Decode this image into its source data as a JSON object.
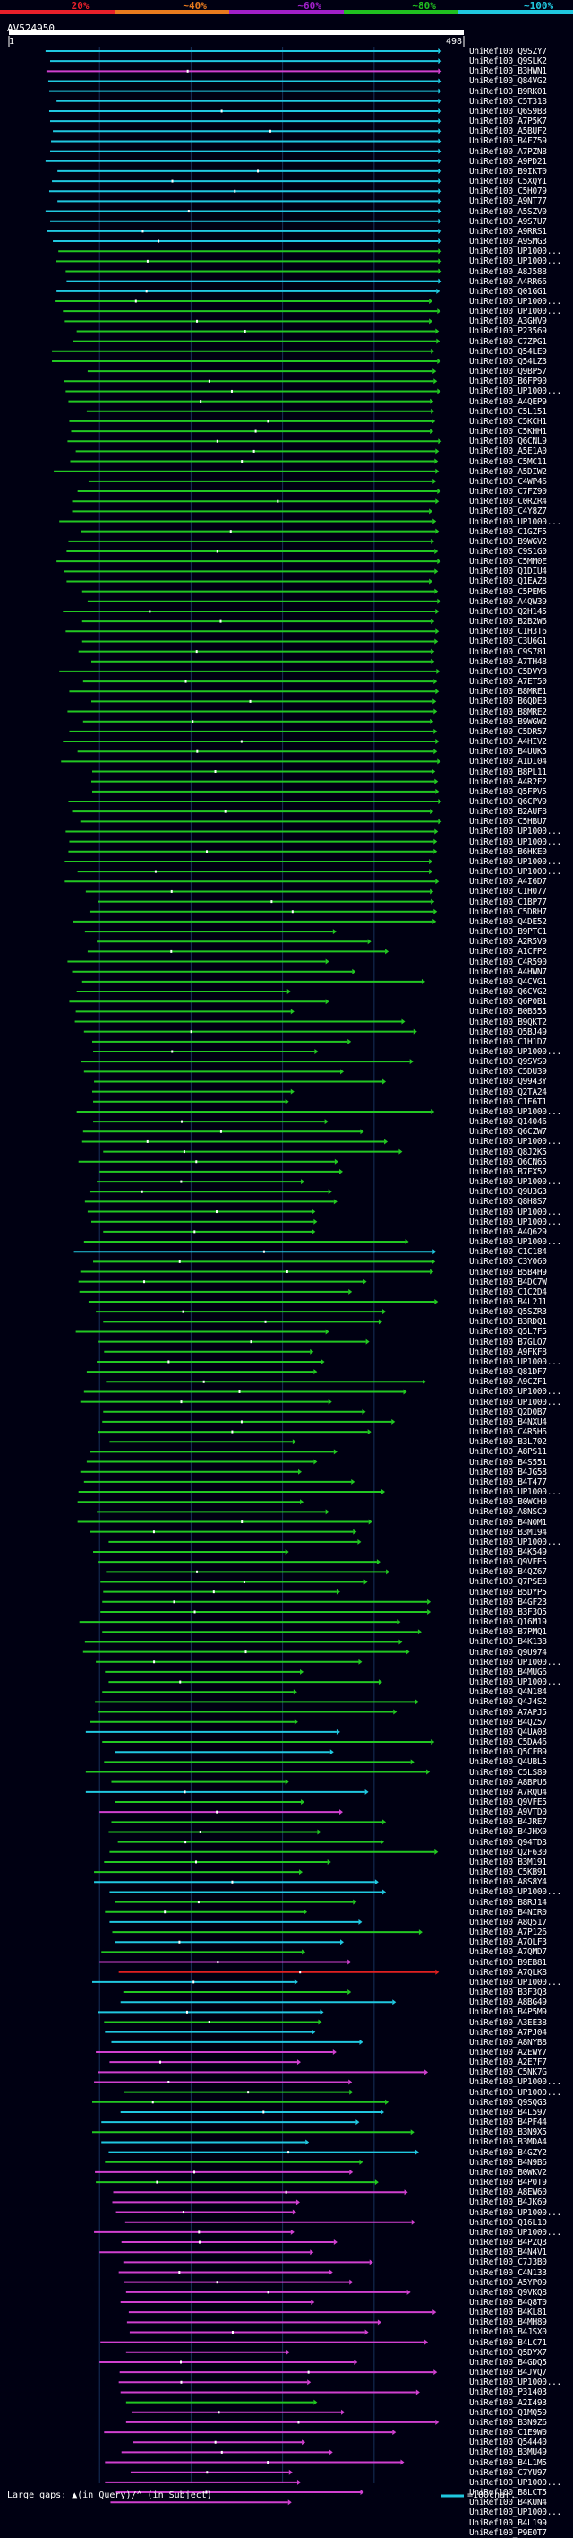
{
  "chart_data": {
    "type": "alignment-overview",
    "query_name": "AV524950",
    "query_length": 498,
    "x_start_label": "1",
    "x_end_label": "498",
    "xlim": [
      1,
      498
    ],
    "identity_scale": [
      {
        "label": "20%",
        "color": "#e8202a"
      },
      {
        "label": "~40%",
        "color": "#e87a1e"
      },
      {
        "label": "~60%",
        "color": "#a020c8"
      },
      {
        "label": "~80%",
        "color": "#20c020"
      },
      {
        "label": "~100%",
        "color": "#20c8e0"
      }
    ],
    "class_colors": {
      "b": "#20c8e0",
      "g": "#22c822",
      "m": "#d040d0",
      "r": "#e02020"
    },
    "hit_names": [
      "UniRef100_Q9SZY7",
      "UniRef100_Q9SLK2",
      "UniRef100_B3HWN1",
      "UniRef100_Q84VG2",
      "UniRef100_B9RK01",
      "UniRef100_C5T318",
      "UniRef100_Q6S9B3",
      "UniRef100_A7P5K7",
      "UniRef100_A5BUF2",
      "UniRef100_B4FZ59",
      "UniRef100_A7PZN8",
      "UniRef100_A9PD21",
      "UniRef100_B9IKT0",
      "UniRef100_C5XQY1",
      "UniRef100_C5H079",
      "UniRef100_A9NT77",
      "UniRef100_A5SZV0",
      "UniRef100_A9S7U7",
      "UniRef100_A9RRS1",
      "UniRef100_A9SMG3",
      "UniRef100_UP1000...",
      "UniRef100_UP1000...",
      "UniRef100_A8J588",
      "UniRef100_A4RR66",
      "UniRef100_Q01GG1",
      "UniRef100_UP1000...",
      "UniRef100_UP1000...",
      "UniRef100_A3GHV9",
      "UniRef100_P23569",
      "UniRef100_C7ZPG1",
      "UniRef100_Q54LE9",
      "UniRef100_Q54LZ3",
      "UniRef100_Q9BP57",
      "UniRef100_B6FP90",
      "UniRef100_UP1000...",
      "UniRef100_A4QEP9",
      "UniRef100_C5L151",
      "UniRef100_C5KCH1",
      "UniRef100_C5KHH1",
      "UniRef100_Q6CNL9",
      "UniRef100_A5E1A0",
      "UniRef100_C5MC11",
      "UniRef100_A5DIW2",
      "UniRef100_C4WP46",
      "UniRef100_C7FZ90",
      "UniRef100_C0RZR4",
      "UniRef100_C4Y8Z7",
      "UniRef100_UP1000...",
      "UniRef100_C1GZF5",
      "UniRef100_B9WGV2",
      "UniRef100_C9S1G0",
      "UniRef100_C5MM0E",
      "UniRef100_Q1DIU4",
      "UniRef100_Q1EAZ8",
      "UniRef100_C5PEM5",
      "UniRef100_A4QW39",
      "UniRef100_Q2H145",
      "UniRef100_B2B2W6",
      "UniRef100_C1H3T6",
      "UniRef100_C3U6G1",
      "UniRef100_C9S781",
      "UniRef100_A7TH48",
      "UniRef100_C5DVY8",
      "UniRef100_A7ET50",
      "UniRef100_B8MRE1",
      "UniRef100_B6QDE3",
      "UniRef100_B8MRE2",
      "UniRef100_B9WGW2",
      "UniRef100_C5DR57",
      "UniRef100_A4HIV2",
      "UniRef100_B4UUK5",
      "UniRef100_A1DI04",
      "UniRef100_B8PL11",
      "UniRef100_A4R2F2",
      "UniRef100_Q5FPV5",
      "UniRef100_Q6CPV9",
      "UniRef100_B2AUF8",
      "UniRef100_C5HBU7",
      "UniRef100_UP1000...",
      "UniRef100_UP1000...",
      "UniRef100_B6HKE0",
      "UniRef100_UP1000...",
      "UniRef100_UP1000...",
      "UniRef100_A4I6D7",
      "UniRef100_C1H077",
      "UniRef100_C1BP77",
      "UniRef100_C5DRH7",
      "UniRef100_Q4DE52",
      "UniRef100_B9PTC1",
      "UniRef100_A2R5V9",
      "UniRef100_A1CFP2",
      "UniRef100_C4R590",
      "UniRef100_A4HWN7",
      "UniRef100_Q4CVG1",
      "UniRef100_Q6CVG2",
      "UniRef100_Q6P0B1",
      "UniRef100_B0B555",
      "UniRef100_B9QKT2",
      "UniRef100_Q5BJ49",
      "UniRef100_C1H1D7",
      "UniRef100_UP1000...",
      "UniRef100_Q9SVS9",
      "UniRef100_C5DU39",
      "UniRef100_Q9943Y",
      "UniRef100_Q2TA24",
      "UniRef100_C1E6T1",
      "UniRef100_UP1000...",
      "UniRef100_Q14046",
      "UniRef100_Q6CZW7",
      "UniRef100_UP1000...",
      "UniRef100_Q8J2K5",
      "UniRef100_Q6CN65",
      "UniRef100_B7FX52",
      "UniRef100_UP1000...",
      "UniRef100_Q9U3G3",
      "UniRef100_Q8H8S7",
      "UniRef100_UP1000...",
      "UniRef100_UP1000...",
      "UniRef100_A4Q629",
      "UniRef100_UP1000...",
      "UniRef100_C1C184",
      "UniRef100_C3Y060",
      "UniRef100_B5B4H9",
      "UniRef100_B4DC7W",
      "UniRef100_C1C2D4",
      "UniRef100_B4L2J1",
      "UniRef100_Q5SZR3",
      "UniRef100_B3RDQ1",
      "UniRef100_Q5L7F5",
      "UniRef100_B7GLO7",
      "UniRef100_A9FKF8",
      "UniRef100_UP1000...",
      "UniRef100_Q81DF7",
      "UniRef100_A9CZF1",
      "UniRef100_UP1000...",
      "UniRef100_UP1000...",
      "UniRef100_Q2D0B7",
      "UniRef100_B4NXU4",
      "UniRef100_C4R5H6",
      "UniRef100_B3L702",
      "UniRef100_A8PS11",
      "UniRef100_B4S551",
      "UniRef100_B4JG58",
      "UniRef100_B4T477",
      "UniRef100_UP1000...",
      "UniRef100_B0WCH0",
      "UniRef100_A8NSC9",
      "UniRef100_B4N0M1",
      "UniRef100_B3M194",
      "UniRef100_UP1000...",
      "UniRef100_B4K549",
      "UniRef100_Q9VFE5",
      "UniRef100_B4QZ67",
      "UniRef100_Q7PSE8",
      "UniRef100_B5DYP5",
      "UniRef100_B4GF23",
      "UniRef100_B3F3Q5",
      "UniRef100_Q16M19",
      "UniRef100_B7PMQ1",
      "UniRef100_B4K138",
      "UniRef100_Q9U974",
      "UniRef100_UP1000...",
      "UniRef100_B4MUG6",
      "UniRef100_UP1000...",
      "UniRef100_Q4N184",
      "UniRef100_Q4J4S2",
      "UniRef100_A7APJ5",
      "UniRef100_B4QZ57",
      "UniRef100_Q4UA08",
      "UniRef100_C5DA46",
      "UniRef100_Q5CFB9",
      "UniRef100_Q4UBL5",
      "UniRef100_C5LS89",
      "UniRef100_A8BPU6",
      "UniRef100_A7RQU4",
      "UniRef100_Q9VFE5",
      "UniRef100_A9VTD0",
      "UniRef100_B4JRE7",
      "UniRef100_B4JHX0",
      "UniRef100_Q94TD3",
      "UniRef100_Q2F630",
      "UniRef100_B3M191",
      "UniRef100_C5KB91",
      "UniRef100_A8S8Y4",
      "UniRef100_UP1000...",
      "UniRef100_B8RJ14",
      "UniRef100_B4NIR0",
      "UniRef100_A8Q517",
      "UniRef100_A7P126",
      "UniRef100_A7QLF3",
      "UniRef100_A7QMD7",
      "UniRef100_B9EB81",
      "UniRef100_A7QLK8",
      "UniRef100_UP1000...",
      "UniRef100_B3F3Q3",
      "UniRef100_A8BG49",
      "UniRef100_B4P5M9",
      "UniRef100_A3EE38",
      "UniRef100_A7PJ04",
      "UniRef100_A8NYB8",
      "UniRef100_A2EWY7",
      "UniRef100_A2E7F7",
      "UniRef100_C5NK7G",
      "UniRef100_UP1000...",
      "UniRef100_UP1000...",
      "UniRef100_Q9SQG3",
      "UniRef100_B4L597",
      "UniRef100_B4PF44",
      "UniRef100_B3N9X5",
      "UniRef100_B3MDA4",
      "UniRef100_B4GZY2",
      "UniRef100_B4N9B6",
      "UniRef100_B0WKV2",
      "UniRef100_B4P0T9",
      "UniRef100_A8EW60",
      "UniRef100_B4JK69",
      "UniRef100_UP1000...",
      "UniRef100_Q16L10",
      "UniRef100_UP1000...",
      "UniRef100_B4PZQ3",
      "UniRef100_B4N4V1",
      "UniRef100_C7J3B0",
      "UniRef100_C4N133",
      "UniRef100_A5YP09",
      "UniRef100_Q9VKQ8",
      "UniRef100_B4Q8T0",
      "UniRef100_B4KL81",
      "UniRef100_B4MH89",
      "UniRef100_B4JSX0",
      "UniRef100_B4LC71",
      "UniRef100_Q5DYX7",
      "UniRef100_B4GDQ5",
      "UniRef100_B4JVQ7",
      "UniRef100_UP1000...",
      "UniRef100_P31403",
      "UniRef100_A2I493",
      "UniRef100_Q1MQ59",
      "UniRef100_B3N9Z6",
      "UniRef100_C1E9W0",
      "UniRef100_Q54440",
      "UniRef100_B3MU49",
      "UniRef100_B4L1M5",
      "UniRef100_C7YU97",
      "UniRef100_UP1000...",
      "UniRef100_B8LCT5",
      "UniRef100_B4KUN4",
      "UniRef100_UP1000...",
      "UniRef100_B4L199",
      "UniRef100_P9E0T7"
    ],
    "hit_classes": "bbmbbbbbbbbbbbbbbbbbgggbbgggggggggggggggggggggggggggggggggggggggggggggggggggggggggggggggggggggggggggggggggggggggggggggggbgggggggggggggggggggggggggggggggggggggggggggggggbgbgggbgmggggggbbggbgbgmrbgbbgbbmmmmggbbgbbgmgmmmmmmmmmmmmmmmmmmmmmgmmmmmmmmmmmmmmmmmmmmmggmmmmmmm"
  },
  "footer": {
    "gaps_text": "Large gaps: ▲(in Query)/⌃ (in Subject)",
    "scale_text": "=100char."
  }
}
